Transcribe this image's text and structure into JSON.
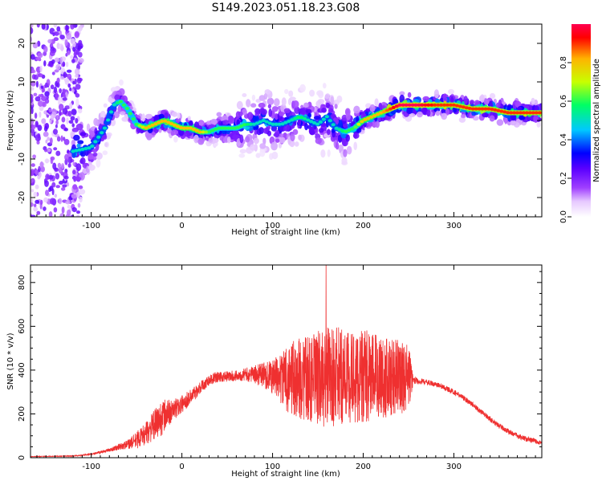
{
  "figure_title": "S149.2023.051.18.23.G08",
  "colors": {
    "snr_line": "#ef3030",
    "colormap": [
      "#ffffff",
      "#e6c8ff",
      "#a040ff",
      "#5a00ff",
      "#0000ff",
      "#00c8ff",
      "#00ff64",
      "#c8ff00",
      "#ffb400",
      "#ff0000",
      "#ff0050"
    ]
  },
  "chart_data": [
    {
      "type": "heatmap",
      "title": "S149.2023.051.18.23.G08",
      "xlabel": "Height of straight line (km)",
      "ylabel": "Frequency (Hz)",
      "xlim": [
        -167,
        397
      ],
      "ylim": [
        -25,
        25
      ],
      "x_ticks": [
        -100,
        0,
        100,
        200,
        300
      ],
      "y_ticks": [
        -20,
        -10,
        0,
        10,
        20
      ],
      "colorbar": {
        "label": "Normalized spectral amplitude",
        "range": [
          0,
          1
        ],
        "ticks": [
          0.0,
          0.2,
          0.4,
          0.6,
          0.8
        ]
      },
      "ridge": {
        "x": [
          -120,
          -100,
          -85,
          -75,
          -68,
          -60,
          -50,
          -40,
          -30,
          -20,
          -10,
          0,
          10,
          20,
          30,
          40,
          50,
          60,
          70,
          80,
          90,
          100,
          110,
          120,
          130,
          140,
          150,
          160,
          170,
          180,
          190,
          200,
          210,
          220,
          230,
          240,
          250,
          260,
          280,
          300,
          320,
          340,
          360,
          380,
          397
        ],
        "y": [
          -8,
          -7,
          -2,
          4,
          5,
          3,
          -1,
          -2,
          -1,
          0,
          -1,
          -2,
          -2,
          -3,
          -3,
          -2,
          -2,
          -2,
          -1,
          -1,
          0,
          -1,
          -1,
          0,
          1,
          0,
          -1,
          1,
          -2,
          -3,
          -2,
          0,
          1,
          2,
          3,
          4,
          4,
          4,
          4,
          4,
          3,
          3,
          2,
          2,
          2
        ],
        "peak_amplitude": [
          0.5,
          0.5,
          0.5,
          0.5,
          0.6,
          0.6,
          0.6,
          0.8,
          0.8,
          0.8,
          0.8,
          0.8,
          0.8,
          0.8,
          0.6,
          0.6,
          0.6,
          0.6,
          0.6,
          0.5,
          0.5,
          0.5,
          0.5,
          0.5,
          0.6,
          0.5,
          0.5,
          0.5,
          0.5,
          0.6,
          0.6,
          0.8,
          0.8,
          0.8,
          0.9,
          1.0,
          1.0,
          1.0,
          0.9,
          0.9,
          0.9,
          0.9,
          0.9,
          0.9,
          0.9
        ],
        "spread_hz": [
          12,
          5,
          4,
          3,
          3,
          2,
          2,
          2,
          2,
          2,
          2,
          2,
          2,
          2,
          2,
          3,
          3,
          4,
          5,
          5,
          6,
          6,
          5,
          5,
          5,
          5,
          5,
          6,
          6,
          5,
          4,
          2,
          2,
          2,
          2,
          2,
          2,
          2,
          2,
          2,
          2,
          2,
          2,
          2,
          2
        ]
      },
      "noise_region_x": [
        -167,
        -110
      ]
    },
    {
      "type": "line",
      "xlabel": "Height of straight line (km)",
      "ylabel": "SNR (10 * v/v)",
      "xlim": [
        -167,
        397
      ],
      "ylim": [
        0,
        880
      ],
      "x_ticks": [
        -100,
        0,
        100,
        200,
        300
      ],
      "y_ticks": [
        0,
        200,
        400,
        600,
        800
      ],
      "series": [
        {
          "envelope_x": [
            -167,
            -120,
            -100,
            -80,
            -60,
            -50,
            -40,
            -30,
            -20,
            -10,
            0,
            10,
            20,
            30,
            40,
            50,
            60,
            70,
            80,
            90,
            100,
            110,
            120,
            130,
            140,
            150,
            160,
            170,
            180,
            190,
            200,
            210,
            220,
            230,
            240,
            250,
            255,
            260,
            270,
            280,
            290,
            300,
            310,
            320,
            330,
            340,
            350,
            360,
            370,
            380,
            390,
            397
          ],
          "envelope_y": [
            5,
            8,
            15,
            35,
            60,
            80,
            110,
            150,
            190,
            215,
            245,
            280,
            320,
            355,
            370,
            370,
            375,
            380,
            380,
            378,
            370,
            360,
            360,
            360,
            360,
            360,
            370,
            370,
            370,
            370,
            370,
            370,
            370,
            370,
            370,
            365,
            355,
            350,
            345,
            335,
            320,
            300,
            275,
            245,
            210,
            175,
            145,
            120,
            100,
            85,
            75,
            70
          ],
          "noise_amplitude": [
            1,
            2,
            4,
            8,
            20,
            40,
            50,
            70,
            80,
            50,
            40,
            35,
            30,
            25,
            25,
            25,
            25,
            30,
            40,
            60,
            80,
            120,
            170,
            190,
            200,
            220,
            230,
            230,
            220,
            220,
            220,
            200,
            200,
            180,
            170,
            160,
            20,
            15,
            12,
            12,
            12,
            12,
            12,
            12,
            12,
            12,
            12,
            12,
            12,
            12,
            12,
            12
          ],
          "peak": {
            "x": 159,
            "y": 880
          }
        }
      ]
    }
  ]
}
